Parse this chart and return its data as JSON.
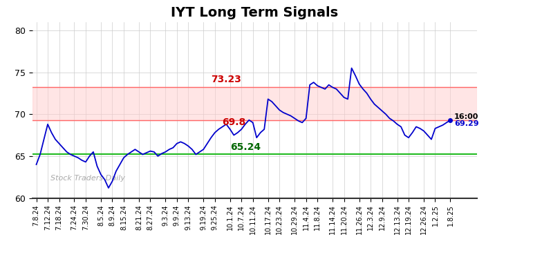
{
  "title": "IYT Long Term Signals",
  "title_fontsize": 14,
  "background_color": "#ffffff",
  "line_color": "#0000cc",
  "line_width": 1.3,
  "hline_green": 65.24,
  "hline_red_lower": 69.29,
  "hline_red_upper": 73.23,
  "hline_green_color": "#22bb22",
  "hline_red_color": "#ff6666",
  "hline_band_alpha": 0.18,
  "annotation_73_23": "73.23",
  "annotation_69_3": "69.8",
  "annotation_65_24": "65.24",
  "annotation_1600": "16:00",
  "annotation_69_29": "69.29",
  "watermark": "Stock Traders Daily",
  "ylabel_values": [
    60,
    65,
    70,
    75,
    80
  ],
  "ylim": [
    60,
    81
  ],
  "grid_color": "#cccccc",
  "dates": [
    "7.8.24",
    "7.12.24",
    "7.18.24",
    "7.24.24",
    "7.30.24",
    "8.5.24",
    "8.9.24",
    "8.15.24",
    "8.21.24",
    "8.27.24",
    "9.3.24",
    "9.9.24",
    "9.13.24",
    "9.19.24",
    "9.25.24",
    "10.1.24",
    "10.7.24",
    "10.11.24",
    "10.17.24",
    "10.23.24",
    "10.29.24",
    "11.4.24",
    "11.8.24",
    "11.14.24",
    "11.20.24",
    "11.26.24",
    "12.3.24",
    "12.9.24",
    "12.13.24",
    "12.19.24",
    "12.26.24",
    "1.2.25",
    "1.8.25"
  ],
  "prices": [
    64.0,
    65.2,
    67.0,
    68.8,
    67.8,
    67.0,
    66.5,
    66.0,
    65.5,
    65.2,
    65.0,
    64.8,
    64.5,
    64.3,
    65.0,
    65.5,
    63.8,
    62.8,
    62.2,
    61.2,
    62.0,
    63.2,
    64.0,
    64.8,
    65.2,
    65.5,
    65.8,
    65.5,
    65.2,
    65.4,
    65.6,
    65.5,
    65.0,
    65.3,
    65.5,
    65.8,
    66.0,
    66.5,
    66.7,
    66.5,
    66.2,
    65.8,
    65.2,
    65.5,
    65.8,
    66.5,
    67.2,
    67.8,
    68.2,
    68.5,
    68.8,
    68.2,
    67.5,
    67.8,
    68.2,
    68.8,
    69.3,
    69.0,
    67.2,
    67.8,
    68.2,
    71.8,
    71.5,
    71.0,
    70.5,
    70.2,
    70.0,
    69.8,
    69.5,
    69.2,
    69.0,
    69.5,
    73.5,
    73.8,
    73.4,
    73.2,
    73.0,
    73.5,
    73.2,
    73.0,
    72.5,
    72.0,
    71.8,
    75.5,
    74.6,
    73.6,
    73.0,
    72.5,
    71.8,
    71.2,
    70.8,
    70.4,
    70.0,
    69.5,
    69.2,
    68.8,
    68.5,
    67.5,
    67.2,
    67.8,
    68.5,
    68.3,
    68.0,
    67.5,
    67.0,
    68.3,
    68.5,
    68.7,
    69.0,
    69.29
  ]
}
